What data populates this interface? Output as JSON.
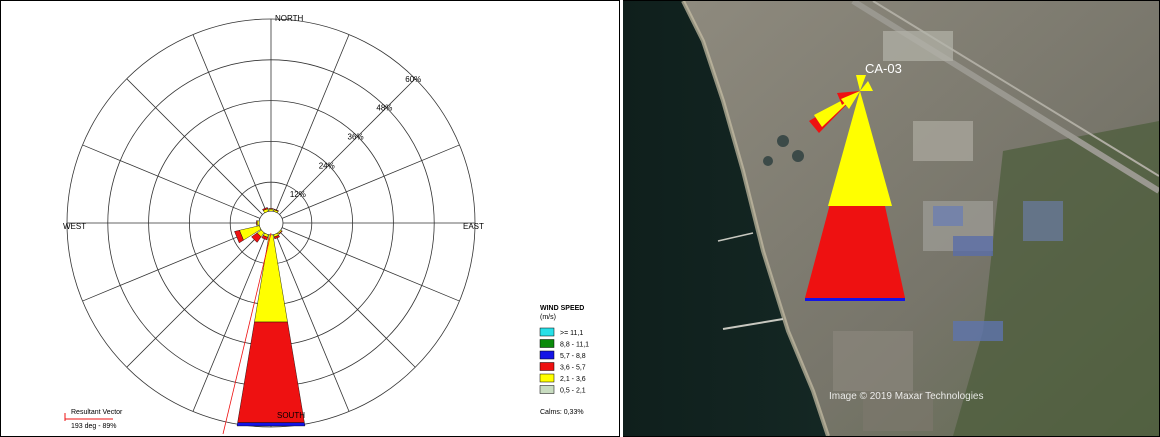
{
  "wind_rose": {
    "directions": {
      "north": "NORTH",
      "east": "EAST",
      "south": "SOUTH",
      "west": "WEST"
    },
    "rings": [
      "12%",
      "24%",
      "36%",
      "48%",
      "60%"
    ],
    "legend": {
      "title": "WIND SPEED",
      "unit": "(m/s)",
      "items": [
        {
          "label": ">= 11,1",
          "color": "#27e0e8"
        },
        {
          "label": "8,8 - 11,1",
          "color": "#0a8a0a"
        },
        {
          "label": "5,7 - 8,8",
          "color": "#1414e6"
        },
        {
          "label": "3,6 - 5,7",
          "color": "#ee1111"
        },
        {
          "label": "2,1 - 3,6",
          "color": "#ffff00"
        },
        {
          "label": "0,5 - 2,1",
          "color": "#c8dcc0"
        }
      ],
      "calms": "Calms: 0,33%"
    },
    "resultant": {
      "title": "Resultant Vector",
      "value": "193 deg - 89%"
    }
  },
  "chart_data": {
    "type": "wind-rose",
    "sectors_deg": [
      0,
      22.5,
      45,
      67.5,
      90,
      112.5,
      135,
      157.5,
      180,
      202.5,
      225,
      247.5,
      270,
      292.5,
      315,
      337.5
    ],
    "rings_percent": [
      12,
      24,
      36,
      48,
      60
    ],
    "bins": [
      "0,5 - 2,1",
      "2,1 - 3,6",
      "3,6 - 5,7",
      "5,7 - 8,8",
      "8,8 - 11,1",
      ">= 11,1"
    ],
    "frequencies_percent": {
      "180": [
        0,
        26,
        30,
        1,
        0,
        0
      ],
      "202.5": [
        0,
        0.8,
        0.8,
        0,
        0,
        0
      ],
      "225": [
        0,
        1.5,
        2,
        0,
        0,
        0
      ],
      "247.5": [
        0,
        6,
        1.5,
        0,
        0,
        0
      ],
      "270": [
        0,
        0.6,
        0.2,
        0,
        0,
        0
      ],
      "157.5": [
        0,
        0.7,
        0.6,
        0,
        0,
        0
      ],
      "337.5": [
        0,
        0.8,
        0.4,
        0,
        0,
        0
      ],
      "0": [
        0,
        0.6,
        0.2,
        0,
        0,
        0
      ],
      "22.5": [
        0,
        0.5,
        0.2,
        0,
        0,
        0
      ],
      "135": [
        0,
        0.4,
        0.2,
        0,
        0,
        0
      ]
    },
    "resultant_vector_deg": 193,
    "resultant_vector_percent": 89,
    "calms_percent": 0.33
  },
  "map": {
    "station_label": "CA-03",
    "attribution": "Image © 2019 Maxar Technologies"
  }
}
